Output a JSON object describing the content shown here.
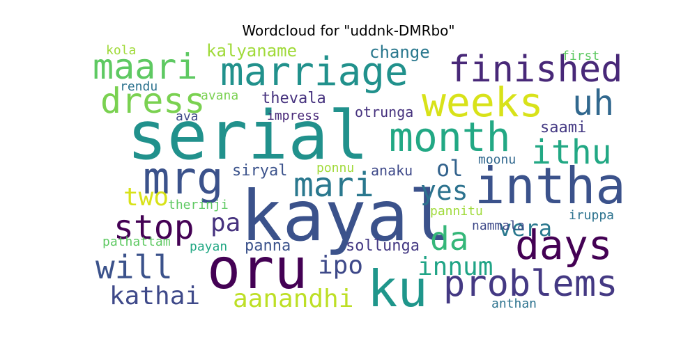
{
  "chart_data": {
    "type": "wordcloud",
    "title": "Wordcloud for \"uddnk-DMRbo\"",
    "words": [
      {
        "text": "serial",
        "color": "#21918c"
      },
      {
        "text": "kayal",
        "color": "#3b528b"
      },
      {
        "text": "oru",
        "color": "#440154"
      },
      {
        "text": "marriage",
        "color": "#21918c"
      },
      {
        "text": "intha",
        "color": "#3b528b"
      },
      {
        "text": "ku",
        "color": "#1f968b"
      },
      {
        "text": "weeks",
        "color": "#d8e219"
      },
      {
        "text": "month",
        "color": "#22a884"
      },
      {
        "text": "finished",
        "color": "#482878"
      },
      {
        "text": "days",
        "color": "#440154"
      },
      {
        "text": "problems",
        "color": "#443983"
      },
      {
        "text": "dress",
        "color": "#7ad151"
      },
      {
        "text": "maari",
        "color": "#5ec962"
      },
      {
        "text": "mrg",
        "color": "#3b528b"
      },
      {
        "text": "mari",
        "color": "#2a788e"
      },
      {
        "text": "uh",
        "color": "#31688e"
      },
      {
        "text": "ithu",
        "color": "#22a884"
      },
      {
        "text": "will",
        "color": "#3b528b"
      },
      {
        "text": "stop",
        "color": "#440154"
      },
      {
        "text": "da",
        "color": "#35b779"
      },
      {
        "text": "aanandhi",
        "color": "#bddf26"
      },
      {
        "text": "kathai",
        "color": "#3e4989"
      },
      {
        "text": "innum",
        "color": "#20a486"
      },
      {
        "text": "ipo",
        "color": "#3e4989"
      },
      {
        "text": "vera",
        "color": "#2a788e"
      },
      {
        "text": "yes",
        "color": "#2c728e"
      },
      {
        "text": "pa",
        "color": "#46327e"
      },
      {
        "text": "two",
        "color": "#d8e219"
      },
      {
        "text": "ol",
        "color": "#33638d"
      },
      {
        "text": "kalyaname",
        "color": "#a0da39"
      },
      {
        "text": "change",
        "color": "#2a788e"
      },
      {
        "text": "thevala",
        "color": "#46327e"
      },
      {
        "text": "saami",
        "color": "#443983"
      },
      {
        "text": "panna",
        "color": "#3b528b"
      },
      {
        "text": "sollunga",
        "color": "#443983"
      },
      {
        "text": "siryal",
        "color": "#3b528b"
      },
      {
        "text": "otrunga",
        "color": "#46327e"
      },
      {
        "text": "anaku",
        "color": "#3e4989"
      },
      {
        "text": "ponnu",
        "color": "#a0da39"
      },
      {
        "text": "moonu",
        "color": "#31688e"
      },
      {
        "text": "rendu",
        "color": "#2c728e"
      },
      {
        "text": "avana",
        "color": "#7ad151"
      },
      {
        "text": "kola",
        "color": "#a0da39"
      },
      {
        "text": "first",
        "color": "#5ec962"
      },
      {
        "text": "impress",
        "color": "#482878"
      },
      {
        "text": "ava",
        "color": "#3e4989"
      },
      {
        "text": "therinji",
        "color": "#5ec962"
      },
      {
        "text": "pannitu",
        "color": "#9fda3a"
      },
      {
        "text": "iruppa",
        "color": "#2c728e"
      },
      {
        "text": "nammala",
        "color": "#3e4989"
      },
      {
        "text": "pathattam",
        "color": "#5ec962"
      },
      {
        "text": "payan",
        "color": "#22a884"
      },
      {
        "text": "anthan",
        "color": "#2c728e"
      }
    ]
  }
}
